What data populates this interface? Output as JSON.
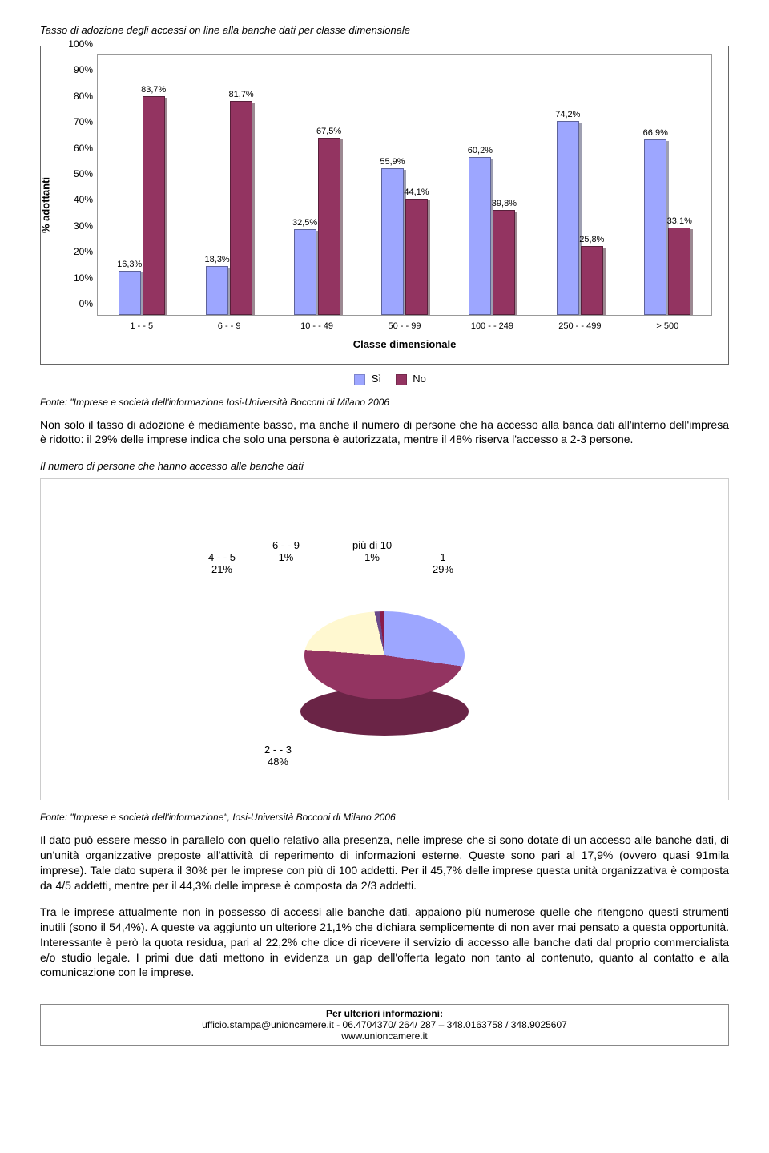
{
  "chart1": {
    "title": "Tasso di adozione degli accessi on line alla banche dati per classe dimensionale",
    "y_axis_label": "% adottanti",
    "x_axis_label": "Classe dimensionale",
    "y_ticks": [
      "0%",
      "10%",
      "20%",
      "30%",
      "40%",
      "50%",
      "60%",
      "70%",
      "80%",
      "90%",
      "100%"
    ],
    "ymax": 100,
    "categories": [
      "1 - - 5",
      "6 - - 9",
      "10 - - 49",
      "50 - - 99",
      "100 - - 249",
      "250 - - 499",
      "> 500"
    ],
    "series": [
      {
        "name": "Sì",
        "color": "#9da6ff",
        "values": [
          16.3,
          18.3,
          32.5,
          55.9,
          60.2,
          74.2,
          66.9
        ],
        "labels": [
          "16,3%",
          "18,3%",
          "32,5%",
          "55,9%",
          "60,2%",
          "74,2%",
          "66,9%"
        ]
      },
      {
        "name": "No",
        "color": "#933461",
        "values": [
          83.7,
          81.7,
          67.5,
          44.1,
          39.8,
          25.8,
          33.1
        ],
        "labels": [
          "83,7%",
          "81,7%",
          "67,5%",
          "44,1%",
          "39,8%",
          "25,8%",
          "33,1%"
        ]
      }
    ]
  },
  "source1": "Fonte: \"Imprese e società dell'informazione Iosi-Università Bocconi di Milano 2006",
  "para1": "Non solo il tasso di adozione è mediamente basso, ma anche il numero di persone che ha accesso alla banca dati all'interno dell'impresa è ridotto: il 29% delle imprese indica che solo una persona è autorizzata, mentre il 48% riserva l'accesso a 2-3 persone.",
  "subtitle2": "Il numero di persone che hanno accesso alle banche dati",
  "pie": {
    "slices": [
      {
        "label_line1": "1",
        "label_line2": "29%",
        "value": 29,
        "color": "#9da6ff"
      },
      {
        "label_line1": "2 - - 3",
        "label_line2": "48%",
        "value": 48,
        "color": "#933461"
      },
      {
        "label_line1": "4 - - 5",
        "label_line2": "21%",
        "value": 21,
        "color": "#fff8d0"
      },
      {
        "label_line1": "6 - - 9",
        "label_line2": "1%",
        "value": 1,
        "color": "#6b4a8a"
      },
      {
        "label_line1": "più di 10",
        "label_line2": "1%",
        "value": 1,
        "color": "#8a1a4a"
      }
    ],
    "side_color": "#6a2446"
  },
  "source2": "Fonte: \"Imprese e società dell'informazione\", Iosi-Università Bocconi di Milano 2006",
  "para2": "Il dato può essere messo in parallelo con quello relativo alla presenza, nelle imprese che si sono dotate di un accesso alle banche dati, di un'unità organizzative preposte all'attività di reperimento di informazioni esterne. Queste sono pari al 17,9% (ovvero quasi 91mila imprese). Tale dato supera il 30% per le imprese con più di 100 addetti. Per il 45,7% delle imprese questa unità organizzativa è composta da 4/5 addetti, mentre per il 44,3% delle imprese è composta da 2/3 addetti.",
  "para3": "Tra le imprese attualmente non in possesso di accessi alle banche dati, appaiono più numerose quelle che ritengono questi strumenti inutili (sono il 54,4%). A queste va aggiunto un ulteriore 21,1% che dichiara semplicemente di non aver mai pensato a questa opportunità. Interessante è però la quota residua, pari al 22,2% che dice di ricevere il servizio di accesso alle banche dati dal proprio commercialista e/o studio legale. I primi due dati mettono in evidenza un gap dell'offerta legato non tanto al contenuto, quanto al contatto e alla comunicazione con le imprese.",
  "footer": {
    "line1": "Per ulteriori informazioni:",
    "line2": "ufficio.stampa@unioncamere.it   -   06.4704370/ 264/ 287 – 348.0163758 / 348.9025607",
    "line3": "www.unioncamere.it"
  }
}
